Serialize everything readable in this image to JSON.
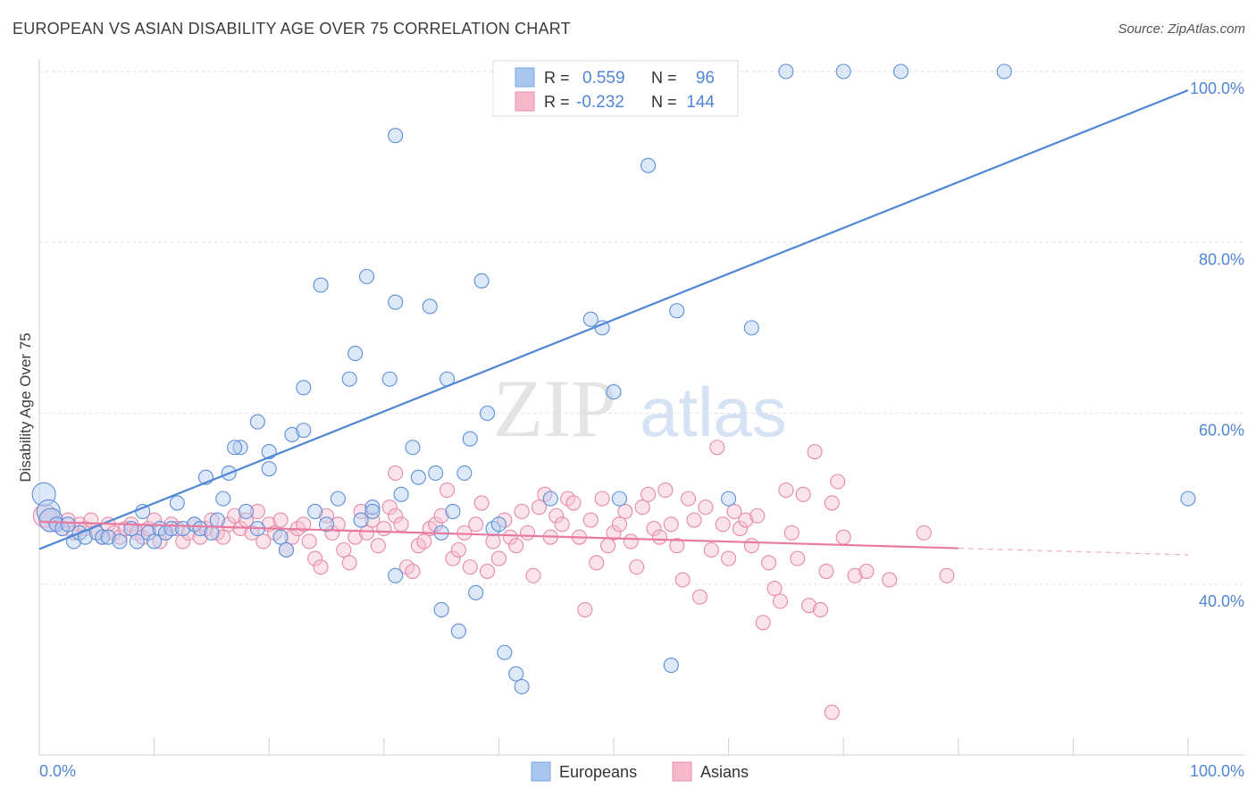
{
  "header": {
    "title": "EUROPEAN VS ASIAN DISABILITY AGE OVER 75 CORRELATION CHART",
    "source": "Source: ZipAtlas.com"
  },
  "watermark": {
    "zip": "ZIP",
    "atlas": "atlas"
  },
  "legend": {
    "r_label": "R =",
    "n_label": "N =",
    "rows": [
      {
        "r": "0.559",
        "n": "96",
        "color": "#4f86d6"
      },
      {
        "r": "-0.232",
        "n": "144",
        "color": "#e87aa0"
      }
    ]
  },
  "bottom_legend": [
    {
      "label": "Europeans",
      "color": "#a9c6ee"
    },
    {
      "label": "Asians",
      "color": "#f5b8cb"
    }
  ],
  "colors": {
    "europeans": "#4f86d6",
    "asians": "#e87aa0",
    "axis_label": "#4f86d6"
  },
  "chart_data": {
    "type": "scatter",
    "title": "EUROPEAN VS ASIAN DISABILITY AGE OVER 75 CORRELATION CHART",
    "ylabel": "Disability Age Over 75",
    "xlabel": "",
    "xlim": [
      0,
      100
    ],
    "ylim": [
      20,
      102
    ],
    "x_tick_labels": [
      "0.0%",
      "100.0%"
    ],
    "y_ticks": [
      40,
      60,
      80,
      100
    ],
    "y_tick_labels": [
      "40.0%",
      "60.0%",
      "80.0%",
      "100.0%"
    ],
    "grid": true,
    "legend_position": "top-center",
    "series": [
      {
        "name": "Europeans",
        "r": 0.559,
        "n": 96,
        "trend": {
          "x": [
            0,
            100
          ],
          "y": [
            44.1,
            97.8
          ]
        },
        "points": [
          [
            0.4,
            50.5
          ],
          [
            0.8,
            48.5
          ],
          [
            1.0,
            47.5
          ],
          [
            1.5,
            47.0
          ],
          [
            2.0,
            46.5
          ],
          [
            2.5,
            47.0
          ],
          [
            3.0,
            45.0
          ],
          [
            3.5,
            46.0
          ],
          [
            4.0,
            45.5
          ],
          [
            5.0,
            46.0
          ],
          [
            5.5,
            45.5
          ],
          [
            6.0,
            45.5
          ],
          [
            7.0,
            45.0
          ],
          [
            8.0,
            46.5
          ],
          [
            8.5,
            45.0
          ],
          [
            9.0,
            48.5
          ],
          [
            9.5,
            46.0
          ],
          [
            10.0,
            45.0
          ],
          [
            10.5,
            46.5
          ],
          [
            11.0,
            46.0
          ],
          [
            11.5,
            46.5
          ],
          [
            12.0,
            49.5
          ],
          [
            12.5,
            46.5
          ],
          [
            13.5,
            47.0
          ],
          [
            14.0,
            46.5
          ],
          [
            15.0,
            46.0
          ],
          [
            15.5,
            47.5
          ],
          [
            16.0,
            50.0
          ],
          [
            17.5,
            56.0
          ],
          [
            18.0,
            48.5
          ],
          [
            19.0,
            46.5
          ],
          [
            20.0,
            55.5
          ],
          [
            21.0,
            45.5
          ],
          [
            22.0,
            57.5
          ],
          [
            23.0,
            58.0
          ],
          [
            24.0,
            48.5
          ],
          [
            25.0,
            47.0
          ],
          [
            26.0,
            50.0
          ],
          [
            28.0,
            47.5
          ],
          [
            29.0,
            49.0
          ],
          [
            16.5,
            53.0
          ],
          [
            14.5,
            52.5
          ],
          [
            17.0,
            56.0
          ],
          [
            19.0,
            59.0
          ],
          [
            20.0,
            53.5
          ],
          [
            21.5,
            44.0
          ],
          [
            23.0,
            63.0
          ],
          [
            24.5,
            75.0
          ],
          [
            27.0,
            64.0
          ],
          [
            27.5,
            67.0
          ],
          [
            28.5,
            76.0
          ],
          [
            29.0,
            48.5
          ],
          [
            30.5,
            64.0
          ],
          [
            31.0,
            73.0
          ],
          [
            31.5,
            50.5
          ],
          [
            32.5,
            56.0
          ],
          [
            33.0,
            52.5
          ],
          [
            34.0,
            72.5
          ],
          [
            34.5,
            53.0
          ],
          [
            35.0,
            46.0
          ],
          [
            35.5,
            64.0
          ],
          [
            36.0,
            48.5
          ],
          [
            37.0,
            53.0
          ],
          [
            37.5,
            57.0
          ],
          [
            38.5,
            75.5
          ],
          [
            39.0,
            60.0
          ],
          [
            39.5,
            46.5
          ],
          [
            40.0,
            47.0
          ],
          [
            31.0,
            41.0
          ],
          [
            35.0,
            37.0
          ],
          [
            36.5,
            34.5
          ],
          [
            38.0,
            39.0
          ],
          [
            40.5,
            32.0
          ],
          [
            41.5,
            29.5
          ],
          [
            42.0,
            28.0
          ],
          [
            44.5,
            50.0
          ],
          [
            41.0,
            100.0
          ],
          [
            42.0,
            100.0
          ],
          [
            44.0,
            100.0
          ],
          [
            46.0,
            100.0
          ],
          [
            47.5,
            98.0
          ],
          [
            48.0,
            100.0
          ],
          [
            49.0,
            70.0
          ],
          [
            48.0,
            71.0
          ],
          [
            50.0,
            62.5
          ],
          [
            50.5,
            50.0
          ],
          [
            55.5,
            72.0
          ],
          [
            56.0,
            100.0
          ],
          [
            60.0,
            50.0
          ],
          [
            62.0,
            70.0
          ],
          [
            65.0,
            100.0
          ],
          [
            70.0,
            100.0
          ],
          [
            75.0,
            100.0
          ],
          [
            84.0,
            100.0
          ],
          [
            100.0,
            50.0
          ],
          [
            53.0,
            89.0
          ],
          [
            31.0,
            92.5
          ],
          [
            55.0,
            30.5
          ]
        ]
      },
      {
        "name": "Asians",
        "r": -0.232,
        "n": 144,
        "trend": {
          "x": [
            0,
            80
          ],
          "y": [
            47.3,
            44.2
          ]
        },
        "points": [
          [
            0.5,
            48.0
          ],
          [
            1.0,
            47.5
          ],
          [
            1.5,
            47.0
          ],
          [
            2.0,
            46.5
          ],
          [
            2.5,
            47.5
          ],
          [
            3.0,
            46.0
          ],
          [
            3.5,
            47.0
          ],
          [
            4.0,
            46.5
          ],
          [
            4.5,
            47.5
          ],
          [
            5.0,
            46.0
          ],
          [
            5.5,
            45.5
          ],
          [
            6.0,
            47.0
          ],
          [
            6.5,
            46.0
          ],
          [
            7.0,
            45.5
          ],
          [
            7.5,
            46.5
          ],
          [
            8.0,
            47.0
          ],
          [
            8.5,
            46.0
          ],
          [
            9.0,
            45.5
          ],
          [
            9.5,
            46.5
          ],
          [
            10.0,
            47.5
          ],
          [
            10.5,
            45.0
          ],
          [
            11.0,
            46.0
          ],
          [
            11.5,
            47.0
          ],
          [
            12.0,
            46.5
          ],
          [
            12.5,
            45.0
          ],
          [
            13.0,
            46.0
          ],
          [
            13.5,
            47.0
          ],
          [
            14.0,
            45.5
          ],
          [
            14.5,
            46.5
          ],
          [
            15.0,
            47.5
          ],
          [
            15.5,
            46.0
          ],
          [
            16.0,
            45.5
          ],
          [
            16.5,
            47.0
          ],
          [
            17.0,
            48.0
          ],
          [
            17.5,
            46.5
          ],
          [
            18.0,
            47.5
          ],
          [
            18.5,
            46.0
          ],
          [
            19.0,
            48.5
          ],
          [
            19.5,
            45.0
          ],
          [
            20.0,
            47.0
          ],
          [
            20.5,
            46.0
          ],
          [
            21.0,
            47.5
          ],
          [
            21.5,
            44.0
          ],
          [
            22.0,
            45.5
          ],
          [
            22.5,
            46.5
          ],
          [
            23.0,
            47.0
          ],
          [
            23.5,
            45.0
          ],
          [
            24.0,
            43.0
          ],
          [
            24.5,
            42.0
          ],
          [
            25.0,
            48.0
          ],
          [
            25.5,
            46.0
          ],
          [
            26.0,
            47.0
          ],
          [
            26.5,
            44.0
          ],
          [
            27.0,
            42.5
          ],
          [
            27.5,
            45.5
          ],
          [
            28.0,
            48.5
          ],
          [
            28.5,
            46.0
          ],
          [
            29.0,
            47.5
          ],
          [
            29.5,
            44.5
          ],
          [
            30.0,
            46.5
          ],
          [
            30.5,
            49.0
          ],
          [
            31.0,
            48.0
          ],
          [
            31.5,
            47.0
          ],
          [
            32.0,
            42.0
          ],
          [
            32.5,
            41.5
          ],
          [
            33.0,
            44.5
          ],
          [
            33.5,
            45.0
          ],
          [
            34.0,
            46.5
          ],
          [
            34.5,
            47.0
          ],
          [
            35.0,
            48.0
          ],
          [
            35.5,
            51.0
          ],
          [
            36.0,
            43.0
          ],
          [
            36.5,
            44.0
          ],
          [
            37.0,
            46.0
          ],
          [
            37.5,
            42.0
          ],
          [
            38.0,
            47.0
          ],
          [
            38.5,
            49.5
          ],
          [
            39.0,
            41.5
          ],
          [
            39.5,
            45.0
          ],
          [
            40.0,
            43.0
          ],
          [
            40.5,
            47.5
          ],
          [
            41.0,
            45.5
          ],
          [
            41.5,
            44.5
          ],
          [
            42.0,
            48.5
          ],
          [
            42.5,
            46.0
          ],
          [
            43.0,
            41.0
          ],
          [
            43.5,
            49.0
          ],
          [
            44.0,
            50.5
          ],
          [
            44.5,
            45.5
          ],
          [
            45.0,
            48.0
          ],
          [
            45.5,
            47.0
          ],
          [
            46.0,
            50.0
          ],
          [
            46.5,
            49.5
          ],
          [
            47.0,
            45.5
          ],
          [
            47.5,
            37.0
          ],
          [
            48.0,
            47.5
          ],
          [
            48.5,
            42.5
          ],
          [
            49.0,
            50.0
          ],
          [
            49.5,
            44.5
          ],
          [
            50.0,
            46.0
          ],
          [
            50.5,
            47.0
          ],
          [
            51.0,
            48.5
          ],
          [
            51.5,
            45.0
          ],
          [
            52.0,
            42.0
          ],
          [
            52.5,
            49.0
          ],
          [
            53.0,
            50.5
          ],
          [
            53.5,
            46.5
          ],
          [
            54.0,
            45.5
          ],
          [
            54.5,
            51.0
          ],
          [
            55.0,
            47.0
          ],
          [
            55.5,
            44.5
          ],
          [
            56.0,
            40.5
          ],
          [
            56.5,
            50.0
          ],
          [
            57.0,
            47.5
          ],
          [
            57.5,
            38.5
          ],
          [
            58.0,
            49.0
          ],
          [
            58.5,
            44.0
          ],
          [
            59.0,
            56.0
          ],
          [
            59.5,
            47.0
          ],
          [
            60.0,
            43.0
          ],
          [
            60.5,
            48.5
          ],
          [
            61.0,
            46.5
          ],
          [
            61.5,
            47.5
          ],
          [
            62.0,
            44.5
          ],
          [
            62.5,
            48.0
          ],
          [
            63.0,
            35.5
          ],
          [
            63.5,
            42.5
          ],
          [
            64.0,
            39.5
          ],
          [
            64.5,
            38.0
          ],
          [
            65.0,
            51.0
          ],
          [
            65.5,
            46.0
          ],
          [
            66.0,
            43.0
          ],
          [
            66.5,
            50.5
          ],
          [
            67.0,
            37.5
          ],
          [
            67.5,
            55.5
          ],
          [
            68.0,
            37.0
          ],
          [
            68.5,
            41.5
          ],
          [
            69.0,
            49.5
          ],
          [
            69.5,
            52.0
          ],
          [
            70.0,
            45.5
          ],
          [
            71.0,
            41.0
          ],
          [
            72.0,
            41.5
          ],
          [
            74.0,
            40.5
          ],
          [
            77.0,
            46.0
          ],
          [
            79.0,
            41.0
          ],
          [
            31.0,
            53.0
          ],
          [
            69.0,
            25.0
          ]
        ]
      }
    ]
  }
}
